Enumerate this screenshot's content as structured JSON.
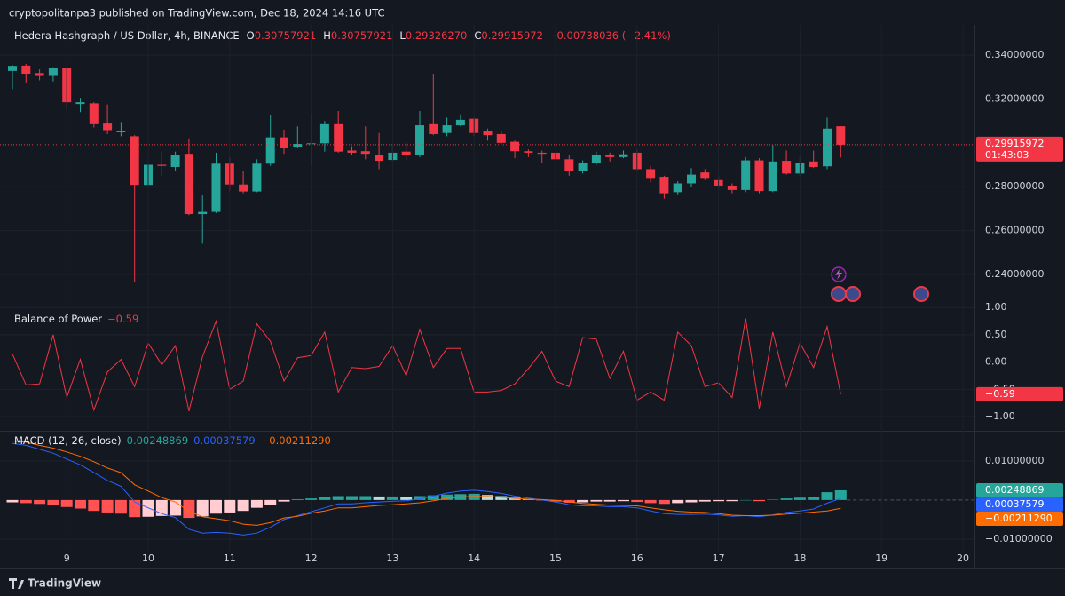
{
  "header": "cryptopolitanpa3 published on TradingView.com, Dec 18, 2024 14:16 UTC",
  "footer": "TradingView",
  "chart_data": [
    {
      "type": "candlestick",
      "symbol": "Hedera Hashgraph / US Dollar, 4h, BINANCE",
      "ohlc_keys": [
        "O",
        "H",
        "L",
        "C"
      ],
      "ohlc_labels": [
        "0.30757921",
        "0.30757921",
        "0.29326270",
        "0.29915972"
      ],
      "change_label": "−0.00738036 (−2.41%)",
      "countdown": "01:43:03",
      "up_color": "#26a69a",
      "down_color": "#f23645",
      "xlim": [
        -0.915,
        70.85
      ],
      "ylim": [
        0.2258,
        0.3538
      ],
      "yticks": [
        {
          "value": 0.34,
          "label": "0.34000000"
        },
        {
          "value": 0.32,
          "label": "0.32000000"
        },
        {
          "value": 0.28,
          "label": "0.28000000"
        },
        {
          "value": 0.26,
          "label": "0.26000000"
        },
        {
          "value": 0.24,
          "label": "0.24000000"
        }
      ],
      "open": [
        0.3328,
        0.3352,
        0.3318,
        0.3305,
        0.334,
        0.3177,
        0.318,
        0.3088,
        0.3048,
        0.303,
        0.2808,
        0.29,
        0.289,
        0.295,
        0.2675,
        0.2685,
        0.2905,
        0.281,
        0.2778,
        0.2905,
        0.3025,
        0.2982,
        0.2995,
        0.2998,
        0.3085,
        0.2965,
        0.2962,
        0.2945,
        0.2922,
        0.296,
        0.2945,
        0.3085,
        0.3045,
        0.308,
        0.311,
        0.3052,
        0.304,
        0.3005,
        0.2962,
        0.2955,
        0.2955,
        0.2925,
        0.287,
        0.291,
        0.2945,
        0.2935,
        0.2955,
        0.288,
        0.2845,
        0.2775,
        0.2815,
        0.2865,
        0.283,
        0.2805,
        0.2785,
        0.292,
        0.278,
        0.2918,
        0.286,
        0.2915,
        0.2893,
        0.30757921
      ],
      "high": [
        0.3355,
        0.336,
        0.3335,
        0.3345,
        0.3345,
        0.3205,
        0.3185,
        0.3175,
        0.3095,
        0.3035,
        0.3035,
        0.296,
        0.296,
        0.302,
        0.276,
        0.2955,
        0.2935,
        0.287,
        0.2925,
        0.3125,
        0.306,
        0.3075,
        0.3135,
        0.31,
        0.3145,
        0.2985,
        0.3075,
        0.3045,
        0.2995,
        0.3,
        0.3145,
        0.3315,
        0.3115,
        0.313,
        0.3115,
        0.3065,
        0.3055,
        0.301,
        0.297,
        0.2965,
        0.296,
        0.2945,
        0.292,
        0.296,
        0.2955,
        0.2965,
        0.297,
        0.2895,
        0.285,
        0.2825,
        0.2885,
        0.288,
        0.285,
        0.2815,
        0.2935,
        0.293,
        0.299,
        0.2965,
        0.2935,
        0.2965,
        0.3115,
        0.30757921
      ],
      "low": [
        0.3245,
        0.3275,
        0.3285,
        0.328,
        0.315,
        0.314,
        0.307,
        0.304,
        0.303,
        0.2365,
        0.278,
        0.285,
        0.287,
        0.267,
        0.254,
        0.268,
        0.278,
        0.277,
        0.2775,
        0.2895,
        0.295,
        0.2975,
        0.2895,
        0.296,
        0.2955,
        0.2945,
        0.2925,
        0.288,
        0.2915,
        0.292,
        0.2935,
        0.3035,
        0.303,
        0.3075,
        0.303,
        0.301,
        0.299,
        0.293,
        0.2935,
        0.291,
        0.291,
        0.285,
        0.286,
        0.29,
        0.2915,
        0.293,
        0.287,
        0.282,
        0.2745,
        0.2765,
        0.28,
        0.283,
        0.2795,
        0.277,
        0.2775,
        0.277,
        0.2775,
        0.2855,
        0.2845,
        0.2885,
        0.288,
        0.2932627
      ],
      "close": [
        0.3351,
        0.3315,
        0.3305,
        0.334,
        0.3185,
        0.3185,
        0.3085,
        0.3058,
        0.3055,
        0.2808,
        0.29,
        0.2895,
        0.2945,
        0.2675,
        0.2685,
        0.2905,
        0.281,
        0.2778,
        0.2905,
        0.3025,
        0.2975,
        0.2995,
        0.2998,
        0.3085,
        0.296,
        0.2955,
        0.295,
        0.2918,
        0.2955,
        0.2945,
        0.308,
        0.304,
        0.308,
        0.3105,
        0.3045,
        0.3035,
        0.3,
        0.2962,
        0.2955,
        0.295,
        0.2925,
        0.287,
        0.291,
        0.2945,
        0.2935,
        0.2948,
        0.288,
        0.284,
        0.277,
        0.2815,
        0.2855,
        0.284,
        0.2805,
        0.2785,
        0.292,
        0.278,
        0.2915,
        0.286,
        0.291,
        0.289,
        0.3065,
        0.29915972
      ]
    },
    {
      "type": "line",
      "title": "Balance of Power",
      "color": "#f23645",
      "last_label": "−0.59",
      "xlim": [
        -0.915,
        70.85
      ],
      "ylim": [
        -1.26,
        1.02
      ],
      "yticks": [
        {
          "value": 1,
          "label": "1.00"
        },
        {
          "value": 0.5,
          "label": "0.50"
        },
        {
          "value": 0,
          "label": "0.00"
        },
        {
          "value": -0.5,
          "label": "−0.50"
        },
        {
          "value": -1,
          "label": "−1.00"
        }
      ],
      "values": [
        0.15,
        -0.42,
        -0.4,
        0.5,
        -0.65,
        0.05,
        -0.88,
        -0.18,
        0.05,
        -0.45,
        0.35,
        -0.05,
        0.3,
        -0.9,
        0.1,
        0.75,
        -0.5,
        -0.35,
        0.7,
        0.38,
        -0.35,
        0.08,
        0.12,
        0.55,
        -0.55,
        -0.1,
        -0.12,
        -0.08,
        0.3,
        -0.25,
        0.6,
        -0.1,
        0.25,
        0.25,
        -0.55,
        -0.55,
        -0.52,
        -0.4,
        -0.12,
        0.2,
        -0.35,
        -0.45,
        0.45,
        0.42,
        -0.3,
        0.2,
        -0.7,
        -0.55,
        -0.7,
        0.55,
        0.3,
        -0.45,
        -0.38,
        -0.65,
        0.8,
        -0.85,
        0.55,
        -0.45,
        0.35,
        -0.1,
        0.65,
        -0.59
      ]
    },
    {
      "type": "macd",
      "title": "MACD (12, 26, close)",
      "xlim": [
        -0.915,
        70.85
      ],
      "ylim": [
        -0.013,
        0.0175
      ],
      "yticks": [
        {
          "value": 0.01,
          "label": "0.01000000"
        },
        {
          "value": -0.01,
          "label": "−0.01000000"
        }
      ],
      "xticks": [
        {
          "value": 4,
          "label": "9"
        },
        {
          "value": 10,
          "label": "10"
        },
        {
          "value": 16,
          "label": "11"
        },
        {
          "value": 22,
          "label": "12"
        },
        {
          "value": 28,
          "label": "13"
        },
        {
          "value": 34,
          "label": "14"
        },
        {
          "value": 40,
          "label": "15"
        },
        {
          "value": 46,
          "label": "16"
        },
        {
          "value": 52,
          "label": "17"
        },
        {
          "value": 58,
          "label": "18"
        },
        {
          "value": 64,
          "label": "19"
        },
        {
          "value": 70,
          "label": "20"
        }
      ],
      "series": [
        {
          "kind": "histogram",
          "color": "#26a69a",
          "colors": [
            "#26a69a",
            "#b2dfdb",
            "#ffcdd2",
            "#ff5252"
          ],
          "values": [
            -0.0006,
            -0.0008,
            -0.001,
            -0.0013,
            -0.0018,
            -0.0022,
            -0.0028,
            -0.0032,
            -0.0035,
            -0.0044,
            -0.0043,
            -0.0041,
            -0.004,
            -0.0046,
            -0.0042,
            -0.0035,
            -0.0032,
            -0.0028,
            -0.002,
            -0.0012,
            -0.0004,
            0.0002,
            0.0004,
            0.0008,
            0.001,
            0.001,
            0.001,
            0.0009,
            0.0009,
            0.0008,
            0.001,
            0.0012,
            0.0014,
            0.0015,
            0.0016,
            0.0013,
            0.001,
            0.0006,
            0.0003,
            -0.0001,
            -0.0004,
            -0.0007,
            -0.0006,
            -0.0004,
            -0.0004,
            -0.0003,
            -0.0005,
            -0.0008,
            -0.001,
            -0.0008,
            -0.0006,
            -0.0004,
            -0.0003,
            -0.0003,
            0,
            -0.0003,
            0.0001,
            0.0004,
            0.0006,
            0.0008,
            0.002,
            0.00248869
          ]
        },
        {
          "kind": "line",
          "color": "#2962ff",
          "values": [
            0.0145,
            0.014,
            0.013,
            0.012,
            0.0105,
            0.009,
            0.007,
            0.005,
            0.0035,
            -0.0005,
            -0.002,
            -0.0035,
            -0.0045,
            -0.0075,
            -0.0085,
            -0.0083,
            -0.0085,
            -0.009,
            -0.0085,
            -0.007,
            -0.005,
            -0.004,
            -0.003,
            -0.002,
            -0.001,
            -0.001,
            -0.0007,
            -0.0005,
            -0.0003,
            -0.0002,
            0.0003,
            0.001,
            0.0018,
            0.0023,
            0.0025,
            0.0022,
            0.0017,
            0.001,
            0.0005,
            0,
            -0.0005,
            -0.0012,
            -0.0015,
            -0.0015,
            -0.0017,
            -0.0017,
            -0.002,
            -0.0028,
            -0.0035,
            -0.0037,
            -0.0037,
            -0.0036,
            -0.0038,
            -0.0042,
            -0.004,
            -0.0043,
            -0.0038,
            -0.0032,
            -0.0028,
            -0.0023,
            -0.0008,
            0.00037579
          ]
        },
        {
          "kind": "line",
          "color": "#ff6d00",
          "last_label": "−0.00211290",
          "values": [
            0.0151,
            0.0148,
            0.014,
            0.0133,
            0.0123,
            0.0112,
            0.0098,
            0.0082,
            0.007,
            0.0039,
            0.0023,
            0.0006,
            -0.0005,
            -0.0029,
            -0.0043,
            -0.0048,
            -0.0053,
            -0.0062,
            -0.0065,
            -0.0058,
            -0.0046,
            -0.0042,
            -0.0034,
            -0.0028,
            -0.002,
            -0.002,
            -0.0017,
            -0.0014,
            -0.0012,
            -0.001,
            -0.0007,
            -0.0002,
            0.0004,
            0.0008,
            0.0009,
            0.0009,
            0.0007,
            0.0004,
            0.0002,
            0.0001,
            -0.0001,
            -0.0005,
            -0.0009,
            -0.0011,
            -0.0013,
            -0.0014,
            -0.0015,
            -0.002,
            -0.0025,
            -0.0029,
            -0.0031,
            -0.0032,
            -0.0035,
            -0.0039,
            -0.004,
            -0.004,
            -0.0039,
            -0.0036,
            -0.0034,
            -0.0031,
            -0.0028,
            -0.0021129
          ]
        }
      ]
    }
  ]
}
